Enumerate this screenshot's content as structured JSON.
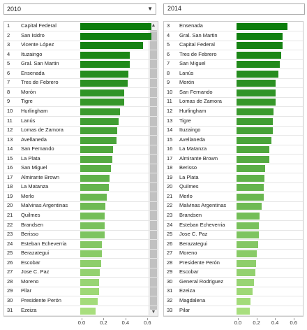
{
  "left": {
    "year": "2010",
    "max": 0.7,
    "rows": [
      {
        "rank": "1",
        "name": "Capital Federal",
        "value": 0.65
      },
      {
        "rank": "2",
        "name": "San Isidro",
        "value": 0.65
      },
      {
        "rank": "3",
        "name": "Vicente López",
        "value": 0.57
      },
      {
        "rank": "4",
        "name": "Ituzaingo",
        "value": 0.45
      },
      {
        "rank": "5",
        "name": "Gral. San Martin",
        "value": 0.45
      },
      {
        "rank": "6",
        "name": "Ensenada",
        "value": 0.44
      },
      {
        "rank": "7",
        "name": "Tres de Febrero",
        "value": 0.43
      },
      {
        "rank": "8",
        "name": "Morón",
        "value": 0.4
      },
      {
        "rank": "9",
        "name": "Tigre",
        "value": 0.4
      },
      {
        "rank": "10",
        "name": "Hurlingham",
        "value": 0.36
      },
      {
        "rank": "11",
        "name": "Lanús",
        "value": 0.35
      },
      {
        "rank": "12",
        "name": "Lomas de Zamora",
        "value": 0.34
      },
      {
        "rank": "13",
        "name": "Avellaneda",
        "value": 0.33
      },
      {
        "rank": "14",
        "name": "San Fernando",
        "value": 0.3
      },
      {
        "rank": "15",
        "name": "La Plata",
        "value": 0.29
      },
      {
        "rank": "16",
        "name": "San Miguel",
        "value": 0.28
      },
      {
        "rank": "17",
        "name": "Almirante Brown",
        "value": 0.27
      },
      {
        "rank": "18",
        "name": "La Matanza",
        "value": 0.26
      },
      {
        "rank": "19",
        "name": "Merlo",
        "value": 0.24
      },
      {
        "rank": "20",
        "name": "Malvinas Argentinas",
        "value": 0.23
      },
      {
        "rank": "21",
        "name": "Quilmes",
        "value": 0.22
      },
      {
        "rank": "22",
        "name": "Brandsen",
        "value": 0.22
      },
      {
        "rank": "23",
        "name": "Berisso",
        "value": 0.22
      },
      {
        "rank": "24",
        "name": "Esteban Echeverria",
        "value": 0.2
      },
      {
        "rank": "25",
        "name": "Berazategui",
        "value": 0.2
      },
      {
        "rank": "26",
        "name": "Escobar",
        "value": 0.19
      },
      {
        "rank": "27",
        "name": "Jose C. Paz",
        "value": 0.18
      },
      {
        "rank": "28",
        "name": "Moreno",
        "value": 0.17
      },
      {
        "rank": "29",
        "name": "Pilar",
        "value": 0.17
      },
      {
        "rank": "30",
        "name": "Presidente Perón",
        "value": 0.16
      },
      {
        "rank": "31",
        "name": "Ezeiza",
        "value": 0.14
      }
    ],
    "ticks": [
      "0.0",
      "0.2",
      "0.4",
      "0.6"
    ]
  },
  "right": {
    "year": "2014",
    "max": 0.7,
    "rows": [
      {
        "rank": "3",
        "name": "Ensenada",
        "value": 0.55
      },
      {
        "rank": "4",
        "name": "Gral. San Martin",
        "value": 0.5
      },
      {
        "rank": "5",
        "name": "Capital Federal",
        "value": 0.5
      },
      {
        "rank": "6",
        "name": "Tres de Febrero",
        "value": 0.48
      },
      {
        "rank": "7",
        "name": "San Miguel",
        "value": 0.47
      },
      {
        "rank": "8",
        "name": "Lanús",
        "value": 0.45
      },
      {
        "rank": "9",
        "name": "Morón",
        "value": 0.42
      },
      {
        "rank": "10",
        "name": "San Fernando",
        "value": 0.42
      },
      {
        "rank": "11",
        "name": "Lomas de Zamora",
        "value": 0.42
      },
      {
        "rank": "12",
        "name": "Hurlingham",
        "value": 0.4
      },
      {
        "rank": "13",
        "name": "Tigre",
        "value": 0.39
      },
      {
        "rank": "14",
        "name": "Ituzaingo",
        "value": 0.39
      },
      {
        "rank": "15",
        "name": "Avellaneda",
        "value": 0.38
      },
      {
        "rank": "16",
        "name": "La Matanza",
        "value": 0.35
      },
      {
        "rank": "17",
        "name": "Almirante Brown",
        "value": 0.35
      },
      {
        "rank": "18",
        "name": "Berisso",
        "value": 0.31
      },
      {
        "rank": "19",
        "name": "La Plata",
        "value": 0.3
      },
      {
        "rank": "20",
        "name": "Quilmes",
        "value": 0.29
      },
      {
        "rank": "21",
        "name": "Merlo",
        "value": 0.29
      },
      {
        "rank": "22",
        "name": "Malvinas Argentinas",
        "value": 0.27
      },
      {
        "rank": "23",
        "name": "Brandsen",
        "value": 0.25
      },
      {
        "rank": "24",
        "name": "Esteban Echeverria",
        "value": 0.24
      },
      {
        "rank": "25",
        "name": "Jose C. Paz",
        "value": 0.24
      },
      {
        "rank": "26",
        "name": "Berazategui",
        "value": 0.23
      },
      {
        "rank": "27",
        "name": "Moreno",
        "value": 0.22
      },
      {
        "rank": "28",
        "name": "Presidente Perón",
        "value": 0.21
      },
      {
        "rank": "29",
        "name": "Escobar",
        "value": 0.2
      },
      {
        "rank": "30",
        "name": "General Rodriguez",
        "value": 0.19
      },
      {
        "rank": "31",
        "name": "Ezeiza",
        "value": 0.17
      },
      {
        "rank": "32",
        "name": "Magdalena",
        "value": 0.15
      },
      {
        "rank": "33",
        "name": "Pilar",
        "value": 0.14
      }
    ],
    "ticks": [
      "0.0",
      "0.2",
      "0.4",
      "0.6"
    ]
  },
  "colors": {
    "dark": "#0c7d0c",
    "light": "#a8de7e"
  }
}
